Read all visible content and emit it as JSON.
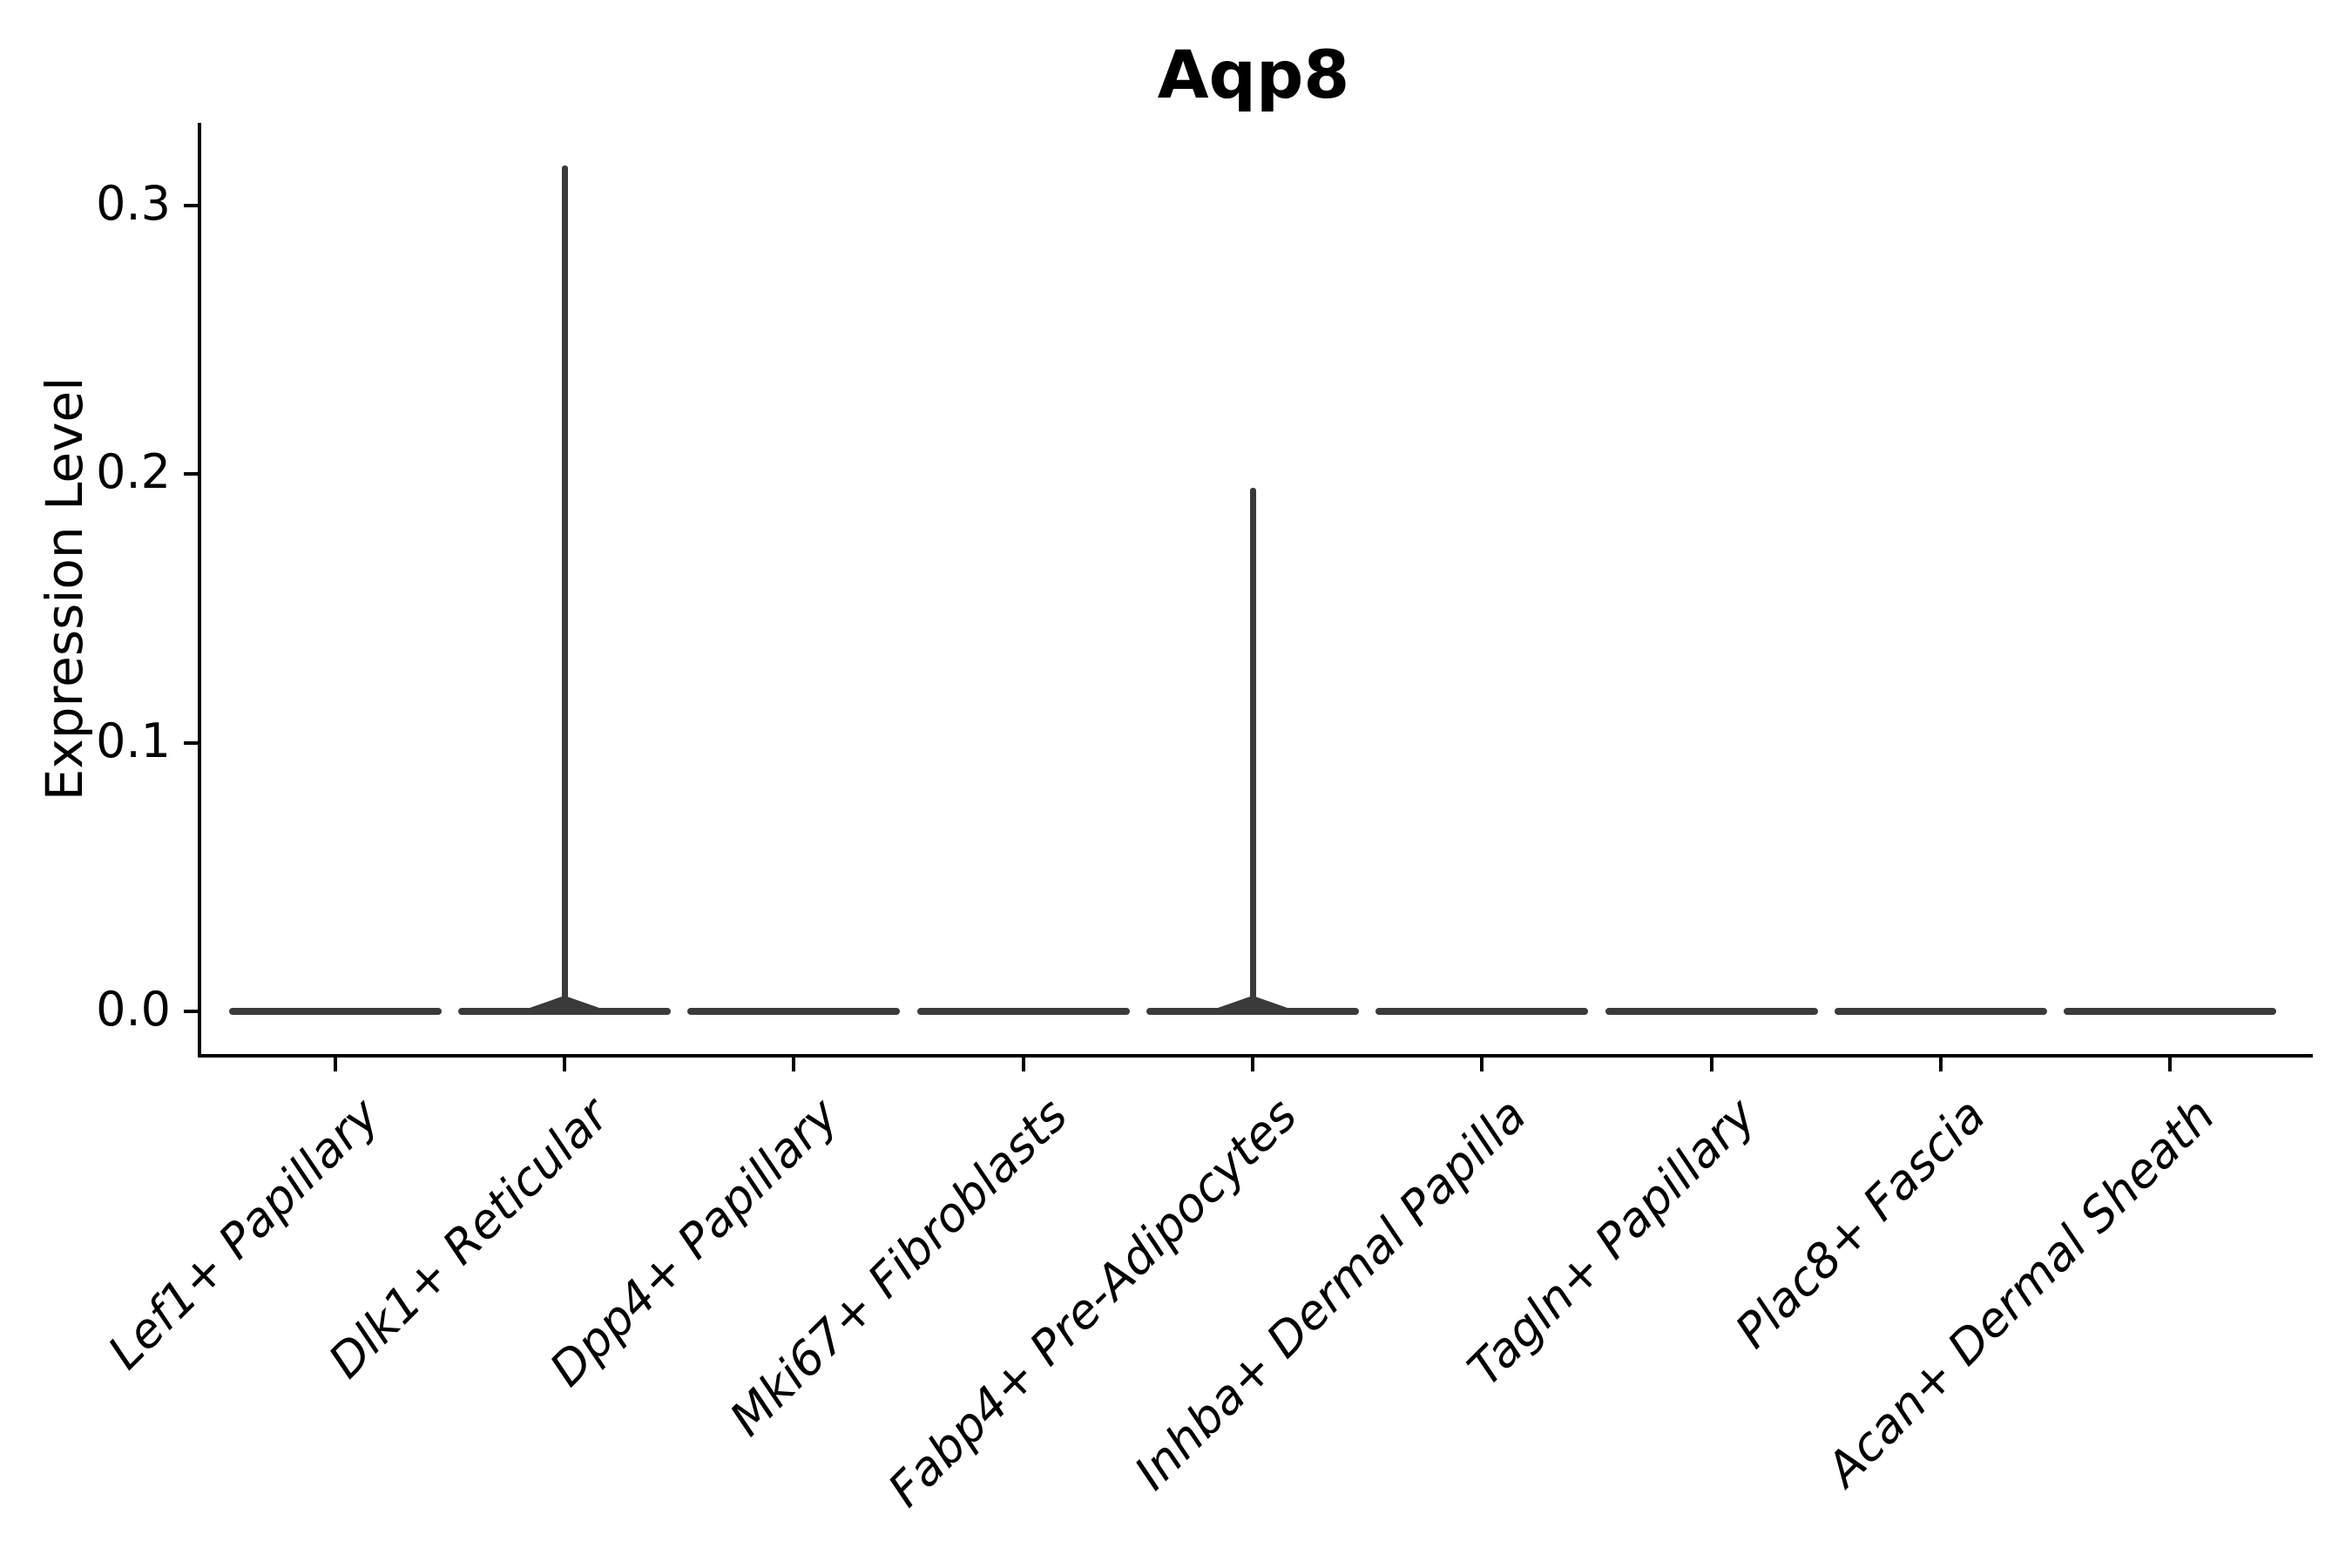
{
  "chart_data": {
    "type": "violin",
    "title": "Aqp8",
    "xlabel": "",
    "ylabel": "Expression Level",
    "categories": [
      "Lef1+ Papillary",
      "Dlk1+ Reticular",
      "Dpp4+ Papillary",
      "Mki67+ Fibroblasts",
      "Fabp4+ Pre-Adipocytes",
      "Inhba+ Dermal Papilla",
      "Tagln+ Papillary",
      "Plac8+ Fascia",
      "Acan+ Dermal Sheath"
    ],
    "series": [
      {
        "name": "peak_expression",
        "values": [
          0,
          0.315,
          0,
          0,
          0.195,
          0,
          0,
          0,
          0
        ]
      },
      {
        "name": "median_expression",
        "values": [
          0,
          0,
          0,
          0,
          0,
          0,
          0,
          0,
          0
        ]
      }
    ],
    "yticks": [
      0.0,
      0.1,
      0.2,
      0.3
    ],
    "ytick_labels": [
      "0.0",
      "0.1",
      "0.2",
      "0.3"
    ],
    "ylim": [
      -0.016,
      0.331
    ],
    "grid": false,
    "legend_position": "none",
    "description": "Violin plot; expression concentrated at 0 for all clusters, thin density spikes up to the peak value for Dlk1+ Reticular and Fabp4+ Pre-Adipocytes.",
    "colors": {
      "violin": "#3a3a3a",
      "axis": "#000000",
      "text": "#000000",
      "background": "#ffffff"
    }
  }
}
